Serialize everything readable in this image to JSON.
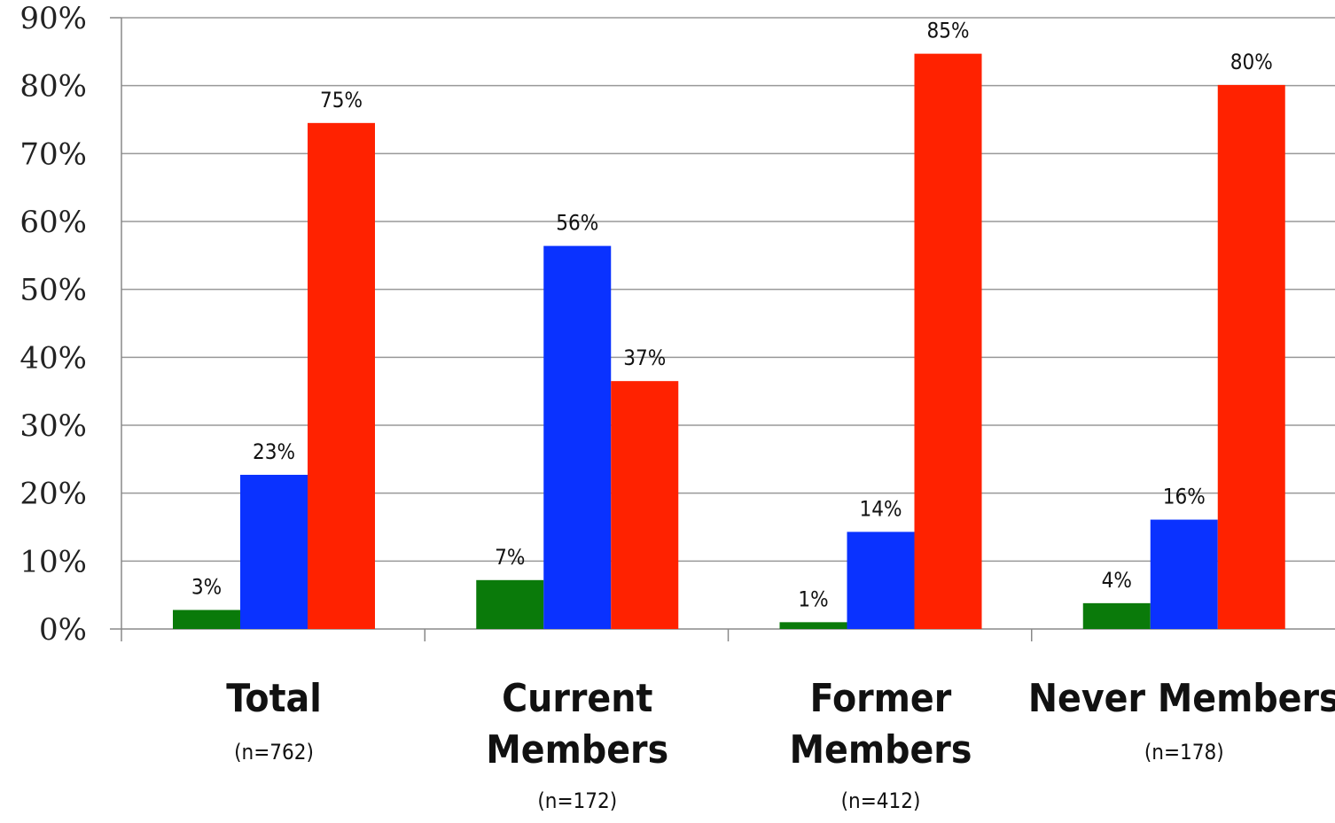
{
  "chart_data": {
    "type": "bar",
    "title": "",
    "xlabel": "",
    "ylabel": "",
    "ylim": [
      0,
      90
    ],
    "yticks": [
      "0%",
      "10%",
      "20%",
      "30%",
      "40%",
      "50%",
      "60%",
      "70%",
      "80%",
      "90%"
    ],
    "grid": true,
    "legend": "none",
    "categories": [
      {
        "lines": [
          "Total"
        ],
        "n": "(n=762)"
      },
      {
        "lines": [
          "Current",
          "Members"
        ],
        "n": "(n=172)"
      },
      {
        "lines": [
          "Former",
          "Members"
        ],
        "n": "(n=412)"
      },
      {
        "lines": [
          "Never Members"
        ],
        "n": "(n=178)"
      }
    ],
    "series": [
      {
        "color": "#0a7a0a",
        "values": [
          2.8,
          7.2,
          1.0,
          3.8
        ],
        "labels": [
          "3%",
          "7%",
          "1%",
          "4%"
        ]
      },
      {
        "color": "#0a32ff",
        "values": [
          22.7,
          56.4,
          14.3,
          16.1
        ],
        "labels": [
          "23%",
          "56%",
          "14%",
          "16%"
        ]
      },
      {
        "color": "#ff2200",
        "values": [
          74.5,
          36.5,
          84.7,
          80.1
        ],
        "labels": [
          "75%",
          "37%",
          "85%",
          "80%"
        ]
      }
    ]
  }
}
